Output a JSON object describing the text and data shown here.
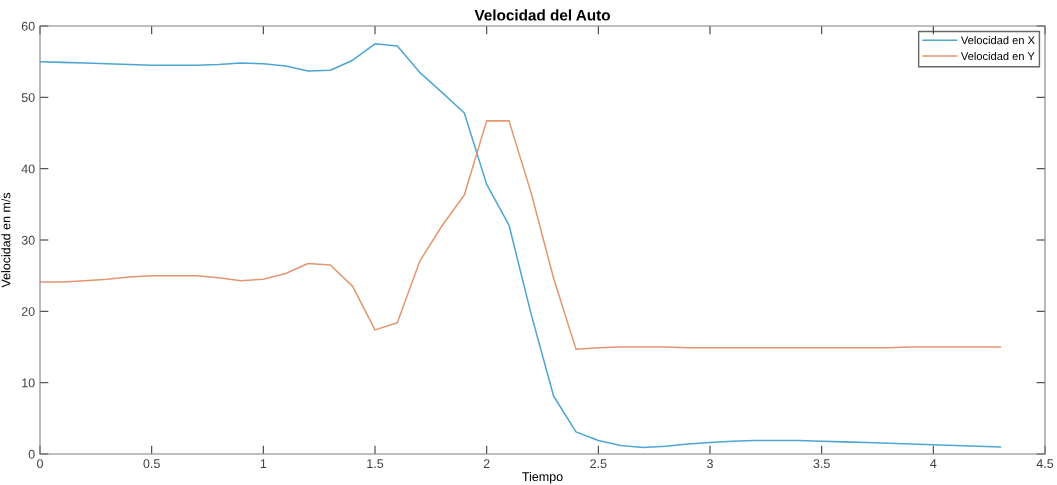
{
  "chart_data": {
    "type": "line",
    "title": "Velocidad del Auto",
    "xlabel": "Tiempo",
    "ylabel": "Velocidad en m/s",
    "x": [
      0,
      0.1,
      0.2,
      0.3,
      0.4,
      0.5,
      0.6,
      0.7,
      0.8,
      0.9,
      1.0,
      1.1,
      1.2,
      1.3,
      1.4,
      1.5,
      1.6,
      1.7,
      1.8,
      1.9,
      2.0,
      2.1,
      2.2,
      2.3,
      2.4,
      2.5,
      2.6,
      2.7,
      2.8,
      2.9,
      3.0,
      3.1,
      3.2,
      3.3,
      3.4,
      3.5,
      3.6,
      3.7,
      3.8,
      3.9,
      4.0,
      4.1,
      4.2,
      4.3
    ],
    "series": [
      {
        "name": "Velocidad en X",
        "color": "#4da6d1",
        "values": [
          55,
          54.9,
          54.8,
          54.7,
          54.6,
          54.5,
          54.5,
          54.5,
          54.6,
          54.8,
          54.7,
          54.4,
          53.7,
          53.8,
          55.2,
          57.5,
          57.2,
          53.5,
          50.7,
          47.8,
          37.8,
          32.1,
          19.5,
          8.1,
          3.1,
          1.9,
          1.2,
          0.9,
          1.1,
          1.4,
          1.6,
          1.8,
          1.9,
          1.9,
          1.9,
          1.8,
          1.7,
          1.6,
          1.5,
          1.4,
          1.3,
          1.2,
          1.1,
          1.0
        ]
      },
      {
        "name": "Velocidad en Y",
        "color": "#e39670",
        "values": [
          24.1,
          24.1,
          24.3,
          24.5,
          24.8,
          25.0,
          25.0,
          25.0,
          24.7,
          24.3,
          24.5,
          25.3,
          26.7,
          26.5,
          23.5,
          17.4,
          18.4,
          27.0,
          32.0,
          36.3,
          46.7,
          46.7,
          36.5,
          24.6,
          14.7,
          14.9,
          15.0,
          15.0,
          15.0,
          14.9,
          14.9,
          14.9,
          14.9,
          14.9,
          14.9,
          14.9,
          14.9,
          14.9,
          14.9,
          15.0,
          15.0,
          15.0,
          15.0,
          15.0
        ]
      }
    ],
    "xlim": [
      0,
      4.5
    ],
    "xticks": [
      0,
      0.5,
      1,
      1.5,
      2,
      2.5,
      3,
      3.5,
      4,
      4.5
    ],
    "ylim": [
      0,
      60
    ],
    "yticks": [
      0,
      10,
      20,
      30,
      40,
      50,
      60
    ],
    "legend": "top right",
    "grid": false,
    "marker": "none",
    "line_style": "solid"
  }
}
